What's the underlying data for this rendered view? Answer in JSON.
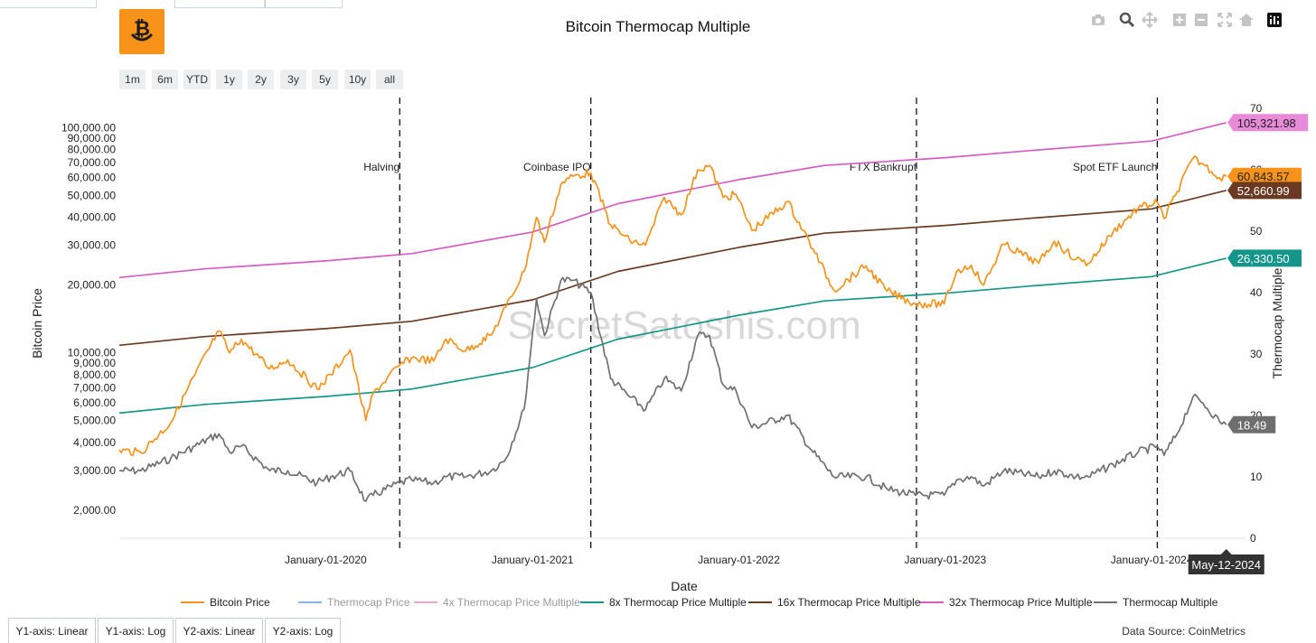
{
  "chart_data": {
    "type": "line",
    "title": "Bitcoin Thermocap Multiple",
    "xlabel": "Date",
    "ylabel": "Bitcoin Price",
    "y2label": "Thermocap Multiple",
    "x_range": [
      "2019-01-01",
      "2024-06-15"
    ],
    "y_scale": "log",
    "y_range": [
      1500,
      140000
    ],
    "y2_range": [
      0,
      70
    ],
    "x_ticks": [
      {
        "date": "2020-01-01",
        "label": "January-01-2020"
      },
      {
        "date": "2021-01-01",
        "label": "January-01-2021"
      },
      {
        "date": "2022-01-01",
        "label": "January-01-2022"
      },
      {
        "date": "2023-01-01",
        "label": "January-01-2023"
      },
      {
        "date": "2024-01-01",
        "label": "January-01-2024"
      }
    ],
    "y_ticks": [
      {
        "v": 2000,
        "label": "2,000.00"
      },
      {
        "v": 3000,
        "label": "3,000.00"
      },
      {
        "v": 4000,
        "label": "4,000.00"
      },
      {
        "v": 5000,
        "label": "5,000.00"
      },
      {
        "v": 6000,
        "label": "6,000.00"
      },
      {
        "v": 7000,
        "label": "7,000.00"
      },
      {
        "v": 8000,
        "label": "8,000.00"
      },
      {
        "v": 9000,
        "label": "9,000.00"
      },
      {
        "v": 10000,
        "label": "10,000.00"
      },
      {
        "v": 20000,
        "label": "20,000.00"
      },
      {
        "v": 30000,
        "label": "30,000.00"
      },
      {
        "v": 40000,
        "label": "40,000.00"
      },
      {
        "v": 50000,
        "label": "50,000.00"
      },
      {
        "v": 60000,
        "label": "60,000.00"
      },
      {
        "v": 70000,
        "label": "70,000.00"
      },
      {
        "v": 80000,
        "label": "80,000.00"
      },
      {
        "v": 90000,
        "label": "90,000.00"
      },
      {
        "v": 100000,
        "label": "100,000.00"
      }
    ],
    "y2_ticks": [
      0,
      10,
      20,
      30,
      40,
      50,
      60,
      70
    ],
    "events": [
      {
        "date": "2020-05-11",
        "label": "Halving"
      },
      {
        "date": "2021-04-14",
        "label": "Coinbase IPO"
      },
      {
        "date": "2022-11-11",
        "label": "FTX Bankrupt"
      },
      {
        "date": "2024-01-11",
        "label": "Spot ETF Launch"
      }
    ],
    "hover_date_label": "May-12-2024",
    "legend_position": "bottom",
    "series": [
      {
        "name": "Bitcoin Price",
        "axis": "y",
        "color": "#f7931a",
        "points": [
          [
            "2019-01-01",
            3700
          ],
          [
            "2019-02-08",
            3600
          ],
          [
            "2019-04-02",
            4900
          ],
          [
            "2019-05-15",
            8000
          ],
          [
            "2019-06-26",
            12500
          ],
          [
            "2019-07-15",
            10000
          ],
          [
            "2019-08-05",
            11500
          ],
          [
            "2019-09-24",
            8500
          ],
          [
            "2019-10-26",
            9300
          ],
          [
            "2019-12-17",
            6900
          ],
          [
            "2020-01-10",
            8000
          ],
          [
            "2020-02-13",
            10300
          ],
          [
            "2020-03-12",
            5000
          ],
          [
            "2020-03-25",
            6600
          ],
          [
            "2020-05-11",
            8800
          ],
          [
            "2020-06-01",
            9500
          ],
          [
            "2020-07-10",
            9200
          ],
          [
            "2020-08-01",
            11500
          ],
          [
            "2020-09-05",
            10200
          ],
          [
            "2020-10-20",
            12000
          ],
          [
            "2020-11-15",
            16000
          ],
          [
            "2020-12-17",
            23000
          ],
          [
            "2021-01-08",
            40000
          ],
          [
            "2021-01-22",
            31000
          ],
          [
            "2021-02-20",
            56000
          ],
          [
            "2021-03-13",
            61000
          ],
          [
            "2021-04-14",
            63000
          ],
          [
            "2021-05-19",
            37000
          ],
          [
            "2021-06-22",
            31500
          ],
          [
            "2021-07-20",
            30000
          ],
          [
            "2021-08-22",
            49000
          ],
          [
            "2021-09-21",
            41000
          ],
          [
            "2021-10-20",
            65000
          ],
          [
            "2021-11-10",
            68000
          ],
          [
            "2021-12-04",
            49000
          ],
          [
            "2021-12-27",
            50500
          ],
          [
            "2022-01-24",
            35000
          ],
          [
            "2022-03-28",
            47000
          ],
          [
            "2022-05-12",
            29000
          ],
          [
            "2022-06-18",
            19000
          ],
          [
            "2022-08-14",
            24300
          ],
          [
            "2022-09-20",
            18800
          ],
          [
            "2022-11-09",
            16500
          ],
          [
            "2022-12-30",
            16500
          ],
          [
            "2023-01-21",
            23000
          ],
          [
            "2023-02-16",
            24500
          ],
          [
            "2023-03-10",
            20000
          ],
          [
            "2023-04-14",
            30400
          ],
          [
            "2023-06-15",
            25000
          ],
          [
            "2023-07-13",
            31300
          ],
          [
            "2023-08-20",
            26000
          ],
          [
            "2023-09-11",
            25000
          ],
          [
            "2023-10-25",
            34500
          ],
          [
            "2023-12-08",
            44000
          ],
          [
            "2024-01-11",
            46500
          ],
          [
            "2024-01-23",
            39500
          ],
          [
            "2024-02-15",
            52000
          ],
          [
            "2024-03-14",
            73000
          ],
          [
            "2024-04-01",
            69000
          ],
          [
            "2024-04-30",
            60000
          ],
          [
            "2024-05-12",
            60843.57
          ]
        ]
      },
      {
        "name": "Thermocap Price",
        "axis": "y",
        "color": "#86b6e6",
        "points": []
      },
      {
        "name": "4x Thermocap Price Multiple",
        "axis": "y",
        "color": "#e6a8d6",
        "points": []
      },
      {
        "name": "8x Thermocap Price Multiple",
        "axis": "y",
        "color": "#14968a",
        "points": [
          [
            "2019-01-01",
            5400
          ],
          [
            "2019-06-01",
            5900
          ],
          [
            "2020-01-01",
            6400
          ],
          [
            "2020-06-01",
            6900
          ],
          [
            "2021-01-01",
            8600
          ],
          [
            "2021-06-01",
            11500
          ],
          [
            "2022-01-01",
            14700
          ],
          [
            "2022-06-01",
            17000
          ],
          [
            "2023-01-01",
            18400
          ],
          [
            "2023-06-01",
            19800
          ],
          [
            "2024-01-01",
            21800
          ],
          [
            "2024-05-12",
            26330.5
          ]
        ]
      },
      {
        "name": "16x Thermocap Price Multiple",
        "axis": "y",
        "color": "#6b3a23",
        "points": [
          [
            "2019-01-01",
            10800
          ],
          [
            "2019-06-01",
            11800
          ],
          [
            "2020-01-01",
            12800
          ],
          [
            "2020-06-01",
            13800
          ],
          [
            "2021-01-01",
            17200
          ],
          [
            "2021-06-01",
            23000
          ],
          [
            "2022-01-01",
            29400
          ],
          [
            "2022-06-01",
            34000
          ],
          [
            "2023-01-01",
            36800
          ],
          [
            "2023-06-01",
            39600
          ],
          [
            "2024-01-01",
            43600
          ],
          [
            "2024-05-12",
            52660.99
          ]
        ]
      },
      {
        "name": "32x Thermocap Price Multiple",
        "axis": "y",
        "color": "#d65cc2",
        "points": [
          [
            "2019-01-01",
            21600
          ],
          [
            "2019-06-01",
            23600
          ],
          [
            "2020-01-01",
            25600
          ],
          [
            "2020-06-01",
            27600
          ],
          [
            "2021-01-01",
            34400
          ],
          [
            "2021-06-01",
            46000
          ],
          [
            "2022-01-01",
            58800
          ],
          [
            "2022-06-01",
            68000
          ],
          [
            "2023-01-01",
            73600
          ],
          [
            "2023-06-01",
            79200
          ],
          [
            "2024-01-01",
            87200
          ],
          [
            "2024-05-12",
            105321.98
          ]
        ]
      },
      {
        "name": "Thermocap Multiple",
        "axis": "y2",
        "color": "#707070",
        "points": [
          [
            "2019-01-01",
            11
          ],
          [
            "2019-02-08",
            11
          ],
          [
            "2019-04-02",
            13
          ],
          [
            "2019-05-15",
            15
          ],
          [
            "2019-06-26",
            17
          ],
          [
            "2019-07-15",
            14
          ],
          [
            "2019-08-05",
            15
          ],
          [
            "2019-09-24",
            11
          ],
          [
            "2019-10-26",
            11
          ],
          [
            "2019-12-17",
            9
          ],
          [
            "2020-01-10",
            10
          ],
          [
            "2020-02-13",
            11
          ],
          [
            "2020-03-12",
            6
          ],
          [
            "2020-03-25",
            7
          ],
          [
            "2020-05-11",
            9
          ],
          [
            "2020-06-01",
            9.5
          ],
          [
            "2020-07-10",
            9
          ],
          [
            "2020-08-01",
            10
          ],
          [
            "2020-09-05",
            10
          ],
          [
            "2020-10-20",
            11
          ],
          [
            "2020-11-15",
            13
          ],
          [
            "2020-12-17",
            21
          ],
          [
            "2021-01-08",
            39
          ],
          [
            "2021-01-22",
            33
          ],
          [
            "2021-02-20",
            42
          ],
          [
            "2021-03-13",
            42
          ],
          [
            "2021-04-14",
            40
          ],
          [
            "2021-05-19",
            26
          ],
          [
            "2021-06-22",
            23
          ],
          [
            "2021-07-20",
            21
          ],
          [
            "2021-08-22",
            26
          ],
          [
            "2021-09-21",
            24
          ],
          [
            "2021-10-20",
            33
          ],
          [
            "2021-11-10",
            33
          ],
          [
            "2021-12-04",
            25
          ],
          [
            "2021-12-27",
            24
          ],
          [
            "2022-01-24",
            18
          ],
          [
            "2022-03-28",
            20
          ],
          [
            "2022-05-12",
            14
          ],
          [
            "2022-06-18",
            10
          ],
          [
            "2022-08-14",
            10
          ],
          [
            "2022-09-20",
            8
          ],
          [
            "2022-11-09",
            7
          ],
          [
            "2022-12-30",
            7
          ],
          [
            "2023-01-21",
            9.5
          ],
          [
            "2023-02-16",
            10
          ],
          [
            "2023-03-10",
            8.5
          ],
          [
            "2023-04-14",
            11
          ],
          [
            "2023-06-15",
            10
          ],
          [
            "2023-07-13",
            11
          ],
          [
            "2023-08-20",
            10
          ],
          [
            "2023-09-11",
            10
          ],
          [
            "2023-10-25",
            12
          ],
          [
            "2023-12-08",
            14
          ],
          [
            "2024-01-11",
            15
          ],
          [
            "2024-01-23",
            13.5
          ],
          [
            "2024-02-15",
            17
          ],
          [
            "2024-03-14",
            23
          ],
          [
            "2024-04-01",
            22
          ],
          [
            "2024-04-30",
            19
          ],
          [
            "2024-05-12",
            18.49
          ]
        ]
      }
    ],
    "end_labels": [
      {
        "series": "32x Thermocap Price Multiple",
        "text": "105,321.98",
        "bg": "#e88ad8",
        "fg": "#222222",
        "value": 105321.98,
        "axis": "y"
      },
      {
        "series": "Bitcoin Price",
        "text": "60,843.57",
        "bg": "#f7931a",
        "fg": "#222222",
        "value": 60843.57,
        "axis": "y"
      },
      {
        "series": "16x Thermocap Price Multiple",
        "text": "52,660.99",
        "bg": "#6b3a23",
        "fg": "#ffffff",
        "value": 52660.99,
        "axis": "y"
      },
      {
        "series": "8x Thermocap Price Multiple",
        "text": "26,330.50",
        "bg": "#14968a",
        "fg": "#ffffff",
        "value": 26330.5,
        "axis": "y"
      },
      {
        "series": "Thermocap Multiple",
        "text": "18.49",
        "bg": "#6e6e6e",
        "fg": "#ffffff",
        "value": 18.49,
        "axis": "y2"
      }
    ],
    "watermark": "SecretSatoshis.com"
  },
  "range_buttons": [
    "1m",
    "6m",
    "YTD",
    "1y",
    "2y",
    "3y",
    "5y",
    "10y",
    "all"
  ],
  "bottom_buttons": [
    "Y1-axis: Linear",
    "Y1-axis: Log",
    "Y2-axis: Linear",
    "Y2-axis: Log"
  ],
  "source_text": "Data Source: CoinMetrics",
  "modebar_icons": [
    "camera-icon",
    "zoom-icon",
    "pan-icon",
    "zoom-in-icon",
    "zoom-out-icon",
    "autoscale-icon",
    "home-icon",
    "plotly-logo-icon"
  ],
  "colors": {
    "accent": "#f7931a"
  }
}
